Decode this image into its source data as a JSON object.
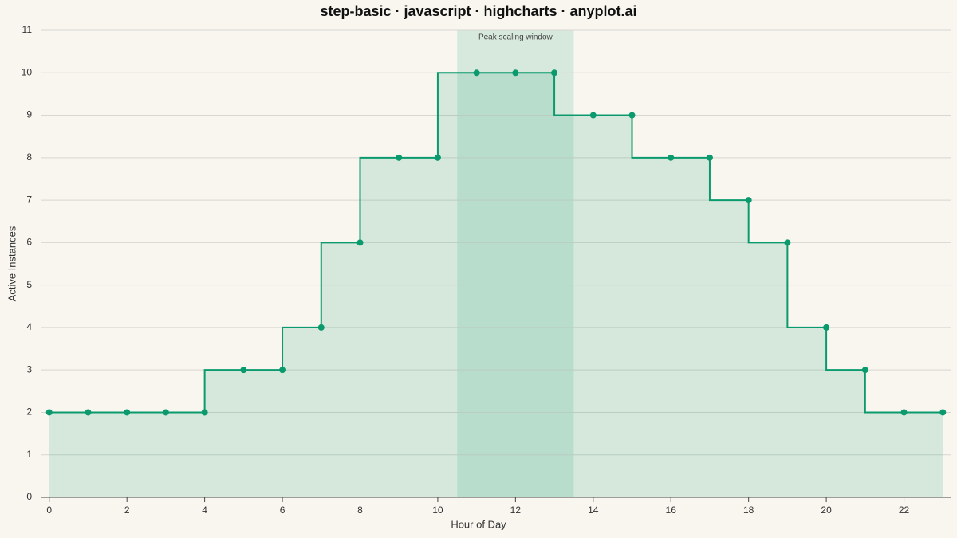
{
  "chart_data": {
    "type": "step",
    "title": "step-basic · javascript · highcharts · anyplot.ai",
    "x_label": "Hour of Day",
    "y_label": "Active Instances",
    "x": [
      0,
      1,
      2,
      3,
      4,
      5,
      6,
      7,
      8,
      9,
      10,
      11,
      12,
      13,
      14,
      15,
      16,
      17,
      18,
      19,
      20,
      21,
      22,
      23
    ],
    "values": [
      2,
      2,
      2,
      2,
      2,
      3,
      3,
      4,
      6,
      8,
      8,
      10,
      10,
      10,
      9,
      9,
      8,
      8,
      7,
      6,
      4,
      3,
      2,
      2
    ],
    "color": "#0b9a6d",
    "xlim": [
      -0.2,
      23.2
    ],
    "xticks": [
      0,
      2,
      4,
      6,
      8,
      10,
      12,
      14,
      16,
      18,
      20,
      22
    ],
    "ylim": [
      0,
      11
    ],
    "yticks": [
      0,
      1,
      2,
      3,
      4,
      5,
      6,
      7,
      8,
      9,
      10,
      11
    ],
    "grid": true,
    "plot_band": {
      "from": 10.5,
      "to": 13.5,
      "label": "Peak scaling window"
    }
  }
}
